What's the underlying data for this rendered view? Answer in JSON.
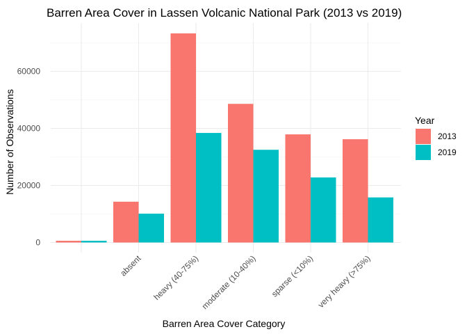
{
  "chart_data": {
    "type": "bar",
    "title": "Barren Area Cover in Lassen Volcanic National Park (2013 vs 2019)",
    "xlabel": "Barren Area Cover Category",
    "ylabel": "Number of Observations",
    "categories": [
      "",
      "absent",
      "heavy (40-75%)",
      "moderate (10-40%)",
      "sparse (<10%)",
      "very heavy (>75%)"
    ],
    "series": [
      {
        "name": "2013",
        "color": "#F8766D",
        "values": [
          600,
          14300,
          73300,
          48600,
          37900,
          36200
        ]
      },
      {
        "name": "2019",
        "color": "#00BFC4",
        "values": [
          600,
          10100,
          38400,
          32500,
          22800,
          15800
        ]
      }
    ],
    "ylim": [
      0,
      75000
    ],
    "yticks": [
      0,
      20000,
      40000,
      60000
    ],
    "ytick_labels": [
      "0",
      "20000",
      "40000",
      "60000"
    ],
    "grid": true,
    "legend": {
      "title": "Year",
      "position": "right"
    }
  }
}
